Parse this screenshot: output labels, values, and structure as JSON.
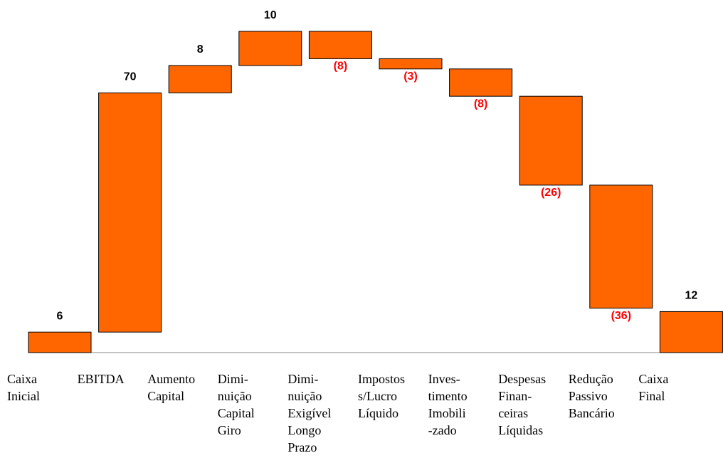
{
  "chart_data": {
    "type": "waterfall",
    "categories": [
      "Caixa\nInicial",
      "EBITDA",
      "Aumento\nCapital",
      "Dimi-\nnuição\nCapital\nGiro",
      "Dimi-\nnuição\nExigível\nLongo\nPrazo",
      "Impostos\ns/Lucro\nLíquido",
      "Inves-\ntimento\nImobili\n-zado",
      "Despesas\nFinan-\nceiras\nLíquidas",
      "Redução\nPassivo\nBancário",
      "Caixa\nFinal"
    ],
    "values": [
      6,
      70,
      8,
      10,
      -8,
      -3,
      -8,
      -26,
      -36,
      12
    ],
    "value_labels": [
      "6",
      "70",
      "8",
      "10",
      "(8)",
      "(3)",
      "(8)",
      "(26)",
      "(36)",
      "12"
    ],
    "color": "#ff6600",
    "negative_label_color": "#ff0000"
  }
}
